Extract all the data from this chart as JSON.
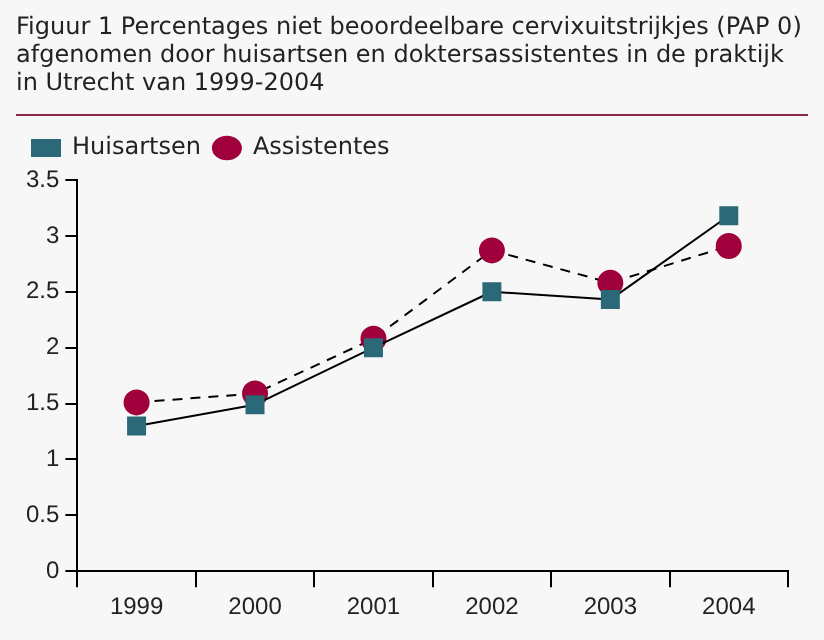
{
  "chart_data": {
    "type": "line",
    "title": "Figuur 1  Percentages niet beoordeelbare cervixuitstrijkjes (PAP 0) afgenomen door huisartsen en doktersassistentes in de praktijk in Utrecht van 1999-2004",
    "categories": [
      "1999",
      "2000",
      "2001",
      "2002",
      "2003",
      "2004"
    ],
    "series": [
      {
        "name": "Huisartsen",
        "color": "#2b6878",
        "marker": "square",
        "line_style": "solid",
        "values": [
          1.3,
          1.49,
          2.0,
          2.5,
          2.43,
          3.18
        ]
      },
      {
        "name": "Assistentes",
        "color": "#a0003c",
        "marker": "circle",
        "line_style": "dashed",
        "values": [
          1.51,
          1.59,
          2.08,
          2.87,
          2.58,
          2.91
        ]
      }
    ],
    "ylim": [
      0,
      3.5
    ],
    "yticks": [
      0,
      0.5,
      1,
      1.5,
      2,
      2.5,
      3,
      3.5
    ],
    "grid": false,
    "legend": "top left"
  }
}
